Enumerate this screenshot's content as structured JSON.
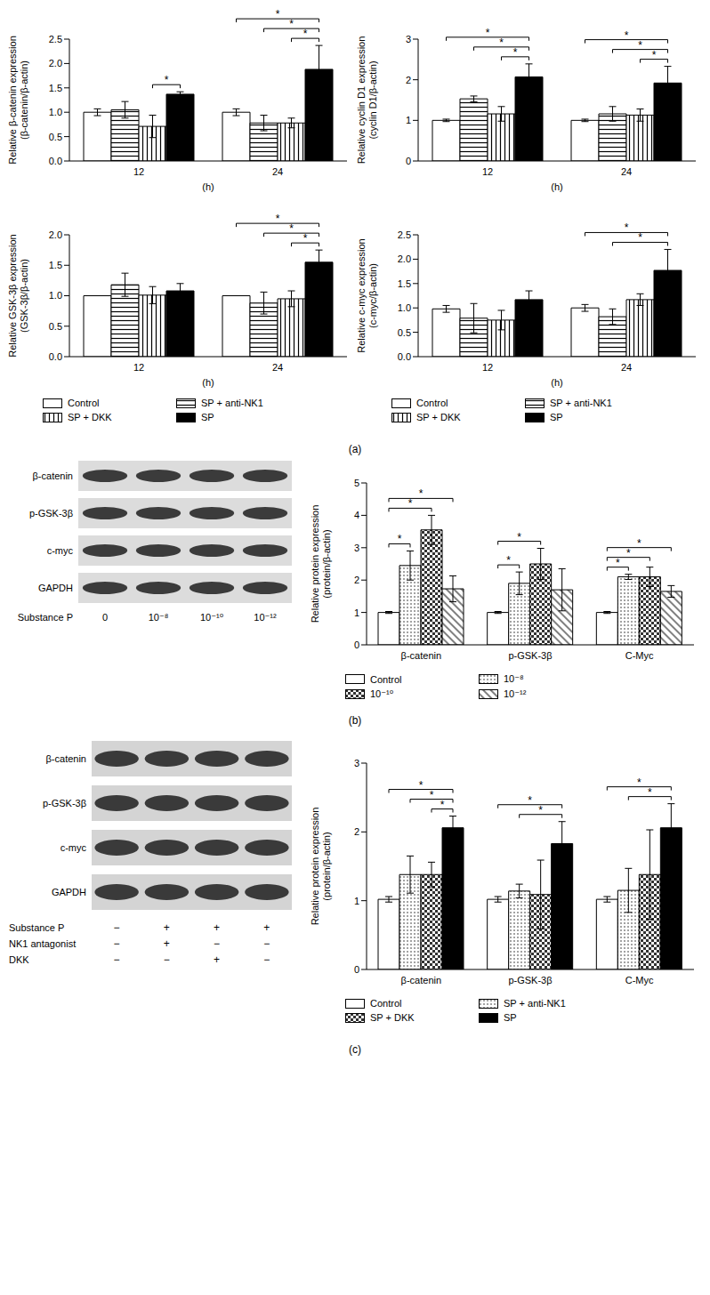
{
  "chart_data": [
    {
      "type": "bar",
      "ylabel": "Relative β-catenin expression\n(β-catenin/β-actin)",
      "xlabel": "(h)",
      "categories": [
        "12",
        "24"
      ],
      "series": [
        {
          "name": "Control",
          "color": "#ffffff",
          "values": [
            1.0,
            1.0
          ],
          "errors": [
            0.07,
            0.07
          ]
        },
        {
          "name": "SP + anti-NK1",
          "color": "#ffffff",
          "values": [
            1.05,
            0.78
          ],
          "errors": [
            0.17,
            0.16
          ]
        },
        {
          "name": "SP + DKK",
          "color": "#ffffff",
          "values": [
            0.71,
            0.78
          ],
          "errors": [
            0.23,
            0.1
          ]
        },
        {
          "name": "SP",
          "color": "#000000",
          "values": [
            1.37,
            1.88
          ],
          "errors": [
            0.05,
            0.49
          ]
        }
      ],
      "ylim": [
        0,
        2.5
      ],
      "yticks": [
        {
          "value": 0,
          "label": "0.0"
        },
        0.5,
        {
          "value": 1,
          "label": "1.0"
        },
        1.5,
        {
          "value": 2,
          "label": "2.0"
        },
        2.5
      ],
      "significance": [
        {
          "category": "12",
          "from": "SP + DKK",
          "to": "SP",
          "label": "*"
        },
        {
          "category": "24",
          "from": "SP + DKK",
          "to": "SP",
          "label": "*"
        },
        {
          "category": "24",
          "from": "SP + anti-NK1",
          "to": "SP",
          "label": "*"
        },
        {
          "category": "24",
          "from": "Control",
          "to": "SP",
          "label": "*"
        }
      ]
    },
    {
      "type": "bar",
      "ylabel": "Relative cyclin D1 expression\n(cyclin D1/β-actin)",
      "xlabel": "(h)",
      "categories": [
        "12",
        "24"
      ],
      "series": [
        {
          "name": "Control",
          "color": "#ffffff",
          "values": [
            1.0,
            1.0
          ],
          "errors": [
            0.03,
            0.03
          ]
        },
        {
          "name": "SP + anti-NK1",
          "color": "#ffffff",
          "values": [
            1.53,
            1.16
          ],
          "errors": [
            0.07,
            0.18
          ]
        },
        {
          "name": "SP + DKK",
          "color": "#ffffff",
          "values": [
            1.16,
            1.13
          ],
          "errors": [
            0.18,
            0.15
          ]
        },
        {
          "name": "SP",
          "color": "#000000",
          "values": [
            2.07,
            1.92
          ],
          "errors": [
            0.32,
            0.41
          ]
        }
      ],
      "ylim": [
        0,
        3
      ],
      "yticks": [
        0,
        1,
        2,
        3
      ],
      "significance": [
        {
          "category": "12",
          "from": "SP + DKK",
          "to": "SP",
          "label": "*"
        },
        {
          "category": "12",
          "from": "SP + anti-NK1",
          "to": "SP",
          "label": "*"
        },
        {
          "category": "12",
          "from": "Control",
          "to": "SP",
          "label": "*"
        },
        {
          "category": "24",
          "from": "SP + DKK",
          "to": "SP",
          "label": "*"
        },
        {
          "category": "24",
          "from": "SP + anti-NK1",
          "to": "SP",
          "label": "*"
        },
        {
          "category": "24",
          "from": "Control",
          "to": "SP",
          "label": "*"
        }
      ]
    },
    {
      "type": "bar",
      "ylabel": "Relative GSK-3β expression\n(GSK-3β/β-actin)",
      "xlabel": "(h)",
      "categories": [
        "12",
        "24"
      ],
      "series": [
        {
          "name": "Control",
          "color": "#ffffff",
          "values": [
            1.0,
            1.0
          ],
          "errors": [
            0,
            0
          ]
        },
        {
          "name": "SP + anti-NK1",
          "color": "#ffffff",
          "values": [
            1.18,
            0.88
          ],
          "errors": [
            0.19,
            0.18
          ]
        },
        {
          "name": "SP + DKK",
          "color": "#ffffff",
          "values": [
            1.01,
            0.95
          ],
          "errors": [
            0.14,
            0.13
          ]
        },
        {
          "name": "SP",
          "color": "#000000",
          "values": [
            1.08,
            1.55
          ],
          "errors": [
            0.12,
            0.2
          ]
        }
      ],
      "ylim": [
        0,
        2
      ],
      "yticks": [
        {
          "value": 0,
          "label": "0.0"
        },
        0.5,
        {
          "value": 1,
          "label": "1.0"
        },
        1.5,
        {
          "value": 2,
          "label": "2.0"
        }
      ],
      "legend": "bottom",
      "significance": [
        {
          "category": "24",
          "from": "SP + DKK",
          "to": "SP",
          "label": "*"
        },
        {
          "category": "24",
          "from": "SP + anti-NK1",
          "to": "SP",
          "label": "*"
        },
        {
          "category": "24",
          "from": "Control",
          "to": "SP",
          "label": "*"
        }
      ]
    },
    {
      "type": "bar",
      "ylabel": "Relative c-myc expression\n(c-myc/β-actin)",
      "xlabel": "(h)",
      "categories": [
        "12",
        "24"
      ],
      "series": [
        {
          "name": "Control",
          "color": "#ffffff",
          "values": [
            0.98,
            1.0
          ],
          "errors": [
            0.07,
            0.07
          ]
        },
        {
          "name": "SP + anti-NK1",
          "color": "#ffffff",
          "values": [
            0.79,
            0.82
          ],
          "errors": [
            0.3,
            0.16
          ]
        },
        {
          "name": "SP + DKK",
          "color": "#ffffff",
          "values": [
            0.75,
            1.17
          ],
          "errors": [
            0.2,
            0.12
          ]
        },
        {
          "name": "SP",
          "color": "#000000",
          "values": [
            1.17,
            1.77
          ],
          "errors": [
            0.18,
            0.43
          ]
        }
      ],
      "ylim": [
        0,
        2.5
      ],
      "yticks": [
        {
          "value": 0,
          "label": "0.0"
        },
        0.5,
        {
          "value": 1,
          "label": "1.0"
        },
        1.5,
        {
          "value": 2,
          "label": "2.0"
        },
        2.5
      ],
      "legend": "bottom",
      "significance": [
        {
          "category": "24",
          "from": "SP + anti-NK1",
          "to": "SP",
          "label": "*"
        },
        {
          "category": "24",
          "from": "Control",
          "to": "SP",
          "label": "*"
        }
      ]
    },
    {
      "type": "bar",
      "ylabel": "Relative protein expression\n(protein/β-actin)",
      "categories": [
        "β-catenin",
        "p-GSK-3β",
        "C-Myc"
      ],
      "series": [
        {
          "name": "Control",
          "color": "#ffffff",
          "values": [
            1.0,
            1.0,
            1.0
          ],
          "errors": [
            0.03,
            0.03,
            0.03
          ]
        },
        {
          "name": "10⁻⁸",
          "color": "#ffffff",
          "values": [
            2.45,
            1.9,
            2.1
          ],
          "errors": [
            0.45,
            0.35,
            0.08
          ]
        },
        {
          "name": "10⁻¹⁰",
          "color": "#ffffff",
          "values": [
            3.55,
            2.5,
            2.1
          ],
          "errors": [
            0.45,
            0.48,
            0.3
          ]
        },
        {
          "name": "10⁻¹²",
          "color": "#ffffff",
          "values": [
            1.73,
            1.7,
            1.65
          ],
          "errors": [
            0.4,
            0.65,
            0.18
          ]
        }
      ],
      "ylim": [
        0,
        5
      ],
      "yticks": [
        0,
        1,
        2,
        3,
        4,
        5
      ],
      "legend": "bottom",
      "significance": [
        {
          "category": "β-catenin",
          "from": "Control",
          "to": "10⁻⁸",
          "label": "*"
        },
        {
          "category": "β-catenin",
          "from": "Control",
          "to": "10⁻¹⁰",
          "label": "*"
        },
        {
          "category": "β-catenin",
          "from": "Control",
          "to": "10⁻¹²",
          "label": "*"
        },
        {
          "category": "p-GSK-3β",
          "from": "Control",
          "to": "10⁻⁸",
          "label": "*"
        },
        {
          "category": "p-GSK-3β",
          "from": "Control",
          "to": "10⁻¹⁰",
          "label": "*"
        },
        {
          "category": "C-Myc",
          "from": "Control",
          "to": "10⁻⁸",
          "label": "*"
        },
        {
          "category": "C-Myc",
          "from": "Control",
          "to": "10⁻¹⁰",
          "label": "*"
        },
        {
          "category": "C-Myc",
          "from": "Control",
          "to": "10⁻¹²",
          "label": "*"
        }
      ]
    },
    {
      "type": "bar",
      "ylabel": "Relative protein expression\n(protein/β-actin)",
      "categories": [
        "β-catenin",
        "p-GSK-3β",
        "C-Myc"
      ],
      "series": [
        {
          "name": "Control",
          "color": "#ffffff",
          "values": [
            1.02,
            1.02,
            1.02
          ],
          "errors": [
            0.04,
            0.04,
            0.04
          ]
        },
        {
          "name": "SP + anti-NK1",
          "color": "#ffffff",
          "values": [
            1.38,
            1.14,
            1.15
          ],
          "errors": [
            0.27,
            0.1,
            0.32
          ]
        },
        {
          "name": "SP + DKK",
          "color": "#ffffff",
          "values": [
            1.38,
            1.09,
            1.38
          ],
          "errors": [
            0.18,
            0.5,
            0.65
          ]
        },
        {
          "name": "SP",
          "color": "#000000",
          "values": [
            2.06,
            1.83,
            2.06
          ],
          "errors": [
            0.17,
            0.32,
            0.35
          ]
        }
      ],
      "ylim": [
        0,
        3
      ],
      "yticks": [
        0,
        1,
        2,
        3
      ],
      "legend": "bottom",
      "significance": [
        {
          "category": "β-catenin",
          "from": "SP + DKK",
          "to": "SP",
          "label": "*"
        },
        {
          "category": "β-catenin",
          "from": "SP + anti-NK1",
          "to": "SP",
          "label": "*"
        },
        {
          "category": "β-catenin",
          "from": "Control",
          "to": "SP",
          "label": "*"
        },
        {
          "category": "p-GSK-3β",
          "from": "SP + anti-NK1",
          "to": "SP",
          "label": "*"
        },
        {
          "category": "p-GSK-3β",
          "from": "Control",
          "to": "SP",
          "label": "*"
        },
        {
          "category": "C-Myc",
          "from": "SP + anti-NK1",
          "to": "SP",
          "label": "*"
        },
        {
          "category": "C-Myc",
          "from": "Control",
          "to": "SP",
          "label": "*"
        }
      ]
    }
  ],
  "blots": [
    {
      "rows": [
        "β-catenin",
        "p-GSK-3β",
        "c-myc",
        "GAPDH"
      ],
      "lane_title": "Substance P",
      "lanes": [
        "0",
        "10⁻⁸",
        "10⁻¹⁰",
        "10⁻¹²"
      ]
    },
    {
      "rows": [
        "β-catenin",
        "p-GSK-3β",
        "c-myc",
        "GAPDH"
      ],
      "conditions": [
        {
          "label": "Substance P",
          "marks": [
            "−",
            "+",
            "+",
            "+"
          ]
        },
        {
          "label": "NK1 antagonist",
          "marks": [
            "−",
            "+",
            "−",
            "−"
          ]
        },
        {
          "label": "DKK",
          "marks": [
            "−",
            "−",
            "+",
            "−"
          ]
        }
      ]
    }
  ],
  "panel_labels": [
    "(a)",
    "(b)",
    "(c)"
  ]
}
